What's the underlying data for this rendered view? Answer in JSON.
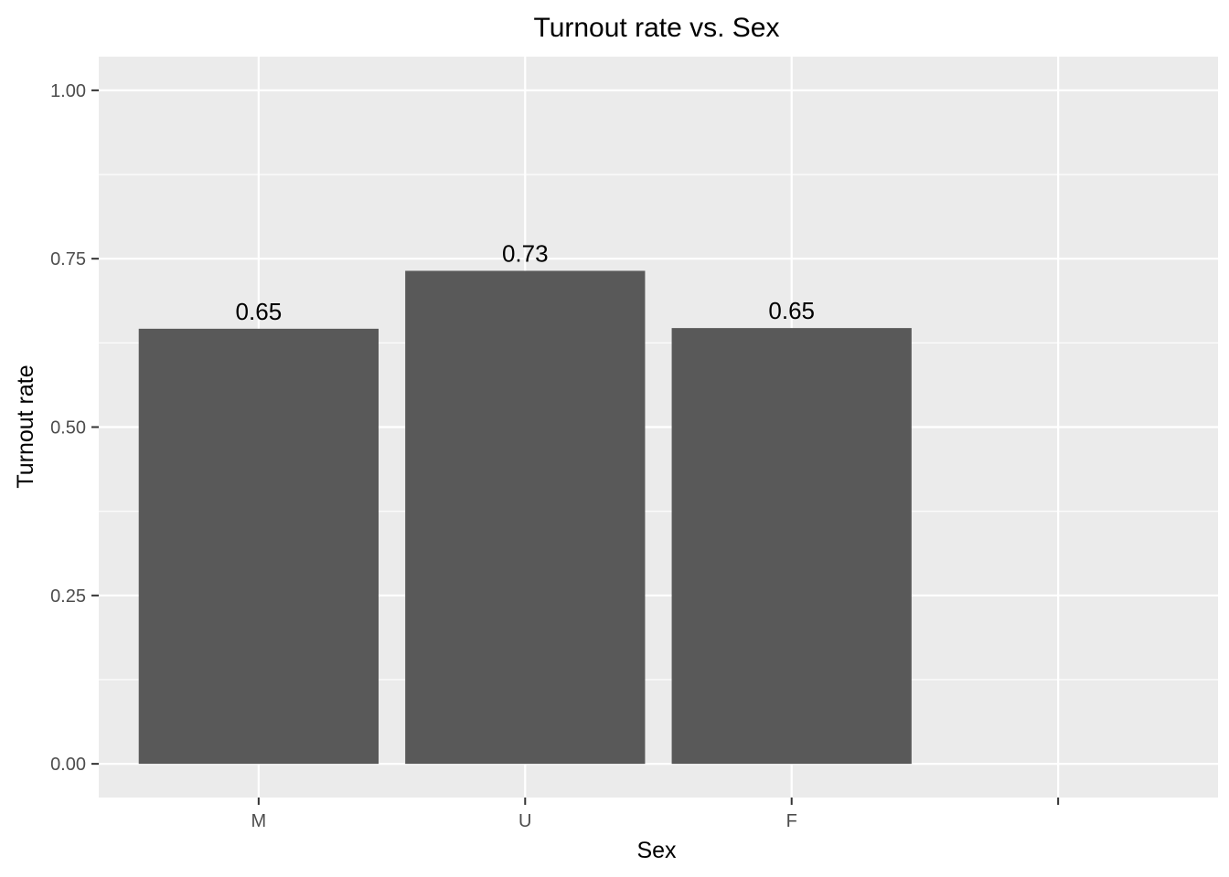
{
  "chart_data": {
    "type": "bar",
    "title": "Turnout rate vs. Sex",
    "xlabel": "Sex",
    "ylabel": "Turnout rate",
    "categories": [
      "M",
      "U",
      "F",
      ""
    ],
    "values": [
      0.646,
      0.732,
      0.647,
      null
    ],
    "data_labels": [
      "0.65",
      "0.73",
      "0.65",
      ""
    ],
    "ylim": [
      -0.05,
      1.05
    ],
    "yticks": [
      0.0,
      0.25,
      0.5,
      0.75,
      1.0
    ],
    "ytick_labels": [
      "0.00",
      "0.25",
      "0.50",
      "0.75",
      "1.00"
    ],
    "grid": true,
    "colors": {
      "panel": "#ebebeb",
      "grid": "#ffffff",
      "bar": "#595959",
      "tick_text": "#4d4d4d",
      "tick_mark": "#333333",
      "text": "#000000"
    }
  }
}
